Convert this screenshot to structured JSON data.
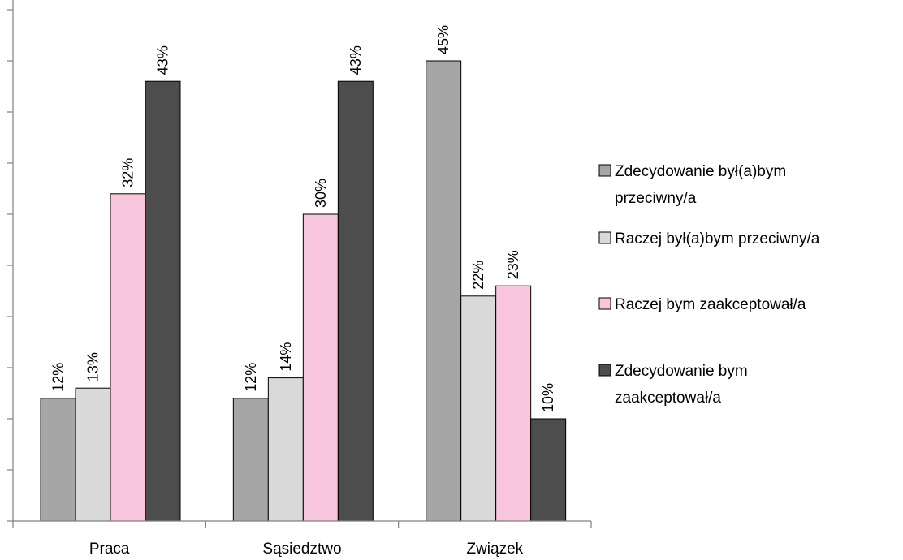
{
  "chart_data": {
    "type": "bar",
    "categories": [
      "Praca",
      "Sąsiedztwo",
      "Związek"
    ],
    "series": [
      {
        "name": "Zdecydowanie był(a)bym przeciwny/a",
        "legend_lines": [
          "Zdecydowanie był(a)bym",
          "przeciwny/a"
        ],
        "values": [
          12,
          12,
          45
        ],
        "labels": [
          "12%",
          "12%",
          "45%"
        ],
        "color": "#a6a6a6"
      },
      {
        "name": "Raczej był(a)bym przeciwny/a",
        "legend_lines": [
          "Raczej był(a)bym przeciwny/a"
        ],
        "values": [
          13,
          14,
          22
        ],
        "labels": [
          "13%",
          "14%",
          "22%"
        ],
        "color": "#d9d9d9"
      },
      {
        "name": "Raczej bym zaakceptował/a",
        "legend_lines": [
          "Raczej bym zaakceptował/a"
        ],
        "values": [
          32,
          30,
          23
        ],
        "labels": [
          "32%",
          "30%",
          "23%"
        ],
        "color": "#f7c6dc"
      },
      {
        "name": "Zdecydowanie bym zaakceptował/a",
        "legend_lines": [
          "Zdecydowanie bym",
          "zaakceptował/a"
        ],
        "values": [
          43,
          43,
          10
        ],
        "labels": [
          "43%",
          "43%",
          "10%"
        ],
        "color": "#4d4d4d"
      }
    ],
    "ylim": [
      0,
      50
    ],
    "ytick_step": 5,
    "value_labels_rotated": true,
    "legend_position": "right",
    "grid": false
  }
}
